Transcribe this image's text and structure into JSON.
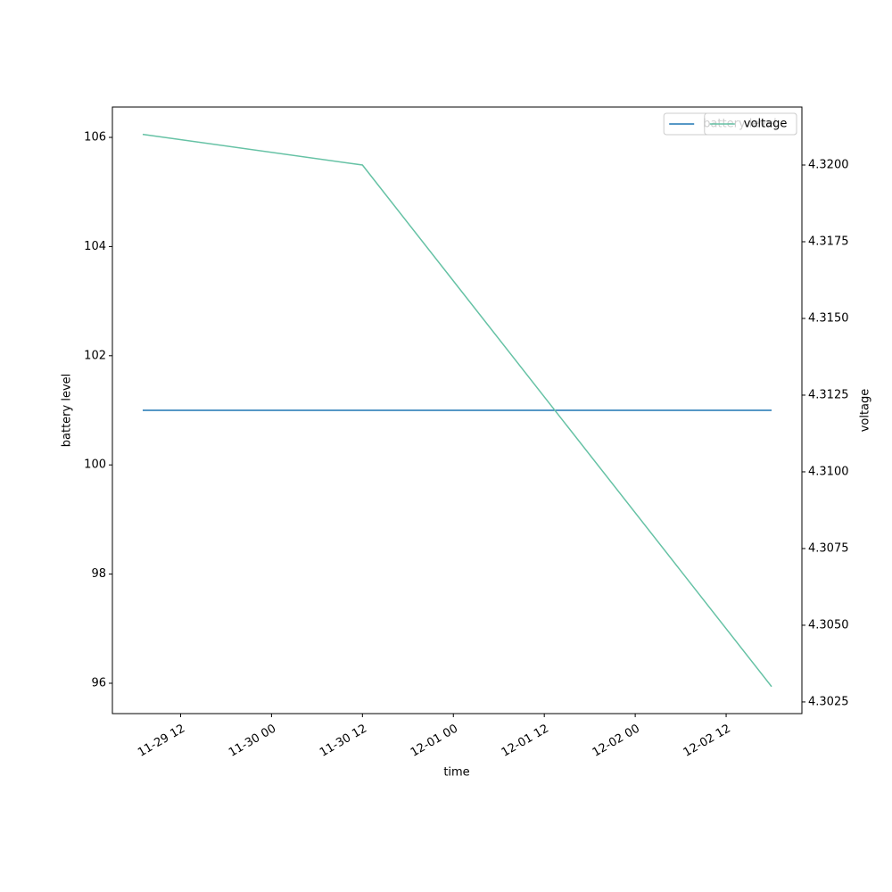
{
  "chart_data": {
    "type": "line",
    "x_label": "time",
    "y_label": "battery level",
    "y2_label": "voltage",
    "x": [
      "11-29 07",
      "11-30 12",
      "12-02 18"
    ],
    "xlim": [
      "11-29 03",
      "12-02 22"
    ],
    "xticks": [
      "11-29 12",
      "11-30 00",
      "11-30 12",
      "12-01 00",
      "12-01 12",
      "12-02 00",
      "12-02 12"
    ],
    "ylim": [
      95.444,
      106.556
    ],
    "yticks": [
      96,
      98,
      100,
      102,
      104,
      106
    ],
    "y2lim": [
      4.30212,
      4.32189
    ],
    "y2ticks": [
      4.3025,
      {
        "value": 4.305,
        "label": "4.3050"
      },
      4.3075,
      {
        "value": 4.31,
        "label": "4.3100"
      },
      4.3125,
      {
        "value": 4.315,
        "label": "4.3150"
      },
      4.3175,
      {
        "value": 4.32,
        "label": "4.3200"
      }
    ],
    "legend": "upper right",
    "series": [
      {
        "name": "battery level",
        "color": "#1f77b4",
        "values": [
          101,
          101,
          101
        ]
      },
      {
        "name": "voltage",
        "color": "#66c2a5",
        "axis": "y2",
        "values": [
          4.321,
          4.32,
          4.303
        ]
      }
    ]
  }
}
